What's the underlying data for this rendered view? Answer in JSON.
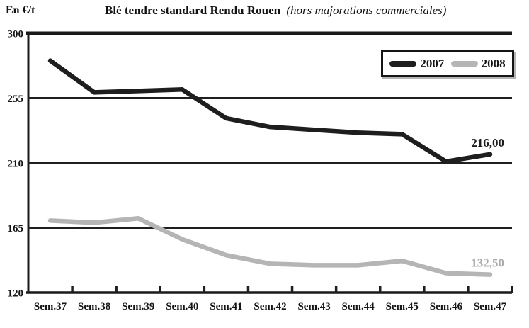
{
  "header": {
    "unit_label": "En €/t",
    "title": "Blé tendre standard Rendu Rouen",
    "title_suffix": "(hors majorations commerciales)"
  },
  "legend": {
    "items": [
      {
        "label": "2007",
        "color": "#1e1e1e"
      },
      {
        "label": "2008",
        "color": "#b5b5b5"
      }
    ]
  },
  "chart_data": {
    "type": "line",
    "title": "Blé tendre standard Rendu Rouen (hors majorations commerciales)",
    "ylabel": "En €/t",
    "xlabel": "",
    "categories": [
      "Sem.37",
      "Sem.38",
      "Sem.39",
      "Sem.40",
      "Sem.41",
      "Sem.42",
      "Sem.43",
      "Sem.44",
      "Sem.45",
      "Sem.46",
      "Sem.47"
    ],
    "series": [
      {
        "name": "2007",
        "color": "#1e1e1e",
        "values": [
          281,
          259,
          260,
          261,
          241,
          235,
          233,
          231,
          230,
          211,
          216
        ]
      },
      {
        "name": "2008",
        "color": "#b5b5b5",
        "values": [
          170,
          168.5,
          171.5,
          157,
          146,
          140,
          139,
          139,
          142,
          133.5,
          132.5
        ]
      }
    ],
    "ylim": [
      120,
      300
    ],
    "yticks": [
      300,
      255,
      210,
      165,
      120
    ],
    "grid": true,
    "legend_position": "top-right",
    "end_labels": [
      {
        "series": "2007",
        "text": "216,00",
        "color": "#1c1c1c"
      },
      {
        "series": "2008",
        "text": "132,50",
        "color": "#ababab"
      }
    ]
  }
}
